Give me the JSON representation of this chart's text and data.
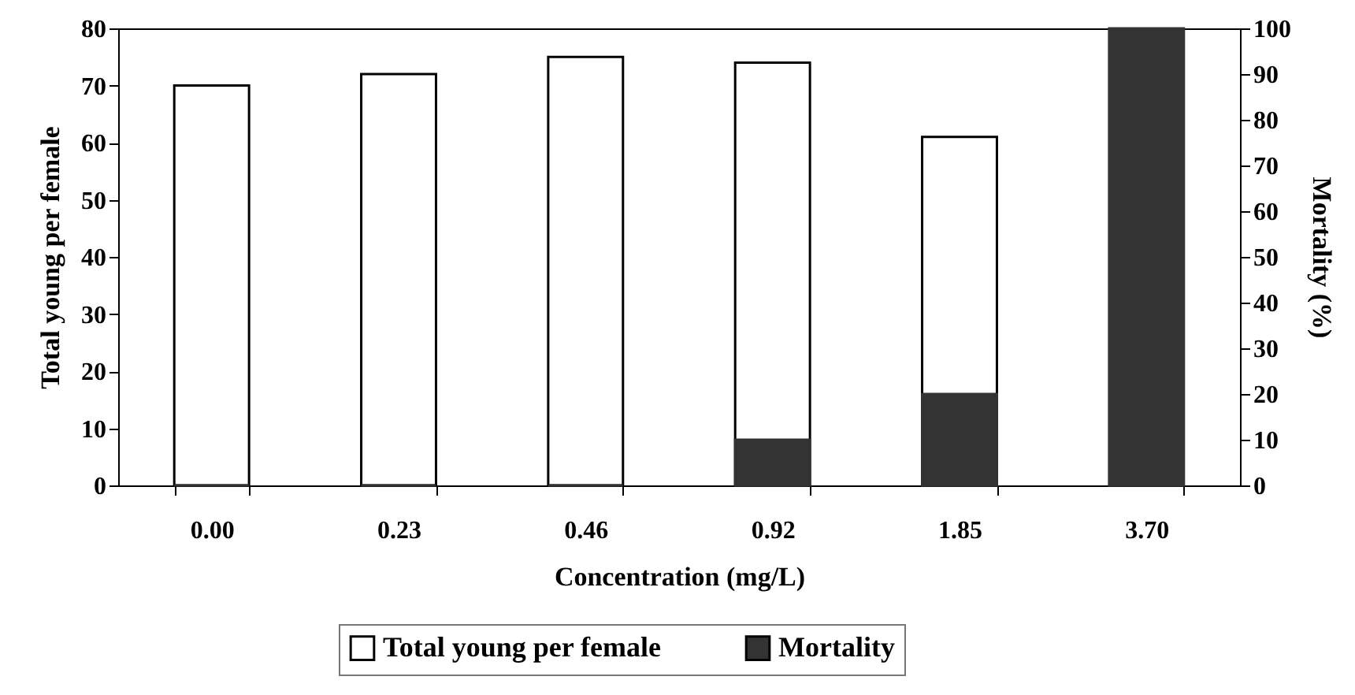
{
  "chart_data": {
    "type": "bar",
    "xlabel": "Concentration (mg/L)",
    "ylabel": "Total young per female",
    "y2label": "Mortality (%)",
    "categories": [
      "0.00",
      "0.23",
      "0.46",
      "0.92",
      "1.85",
      "3.70"
    ],
    "series": [
      {
        "name": "Total young per female",
        "color": "#ffffff",
        "values": [
          70,
          72,
          75,
          74,
          61,
          null
        ]
      },
      {
        "name": "Mortality",
        "color": "#333333",
        "axis": "y2",
        "values": [
          0,
          0,
          0,
          10,
          20,
          100
        ]
      }
    ],
    "ylim": [
      0,
      80
    ],
    "yticks": [
      0,
      10,
      20,
      30,
      40,
      50,
      60,
      70,
      80
    ],
    "y2lim": [
      0,
      100
    ],
    "y2ticks": [
      0,
      10,
      20,
      30,
      40,
      50,
      60,
      70,
      80,
      90,
      100
    ],
    "legend": "bottom"
  }
}
